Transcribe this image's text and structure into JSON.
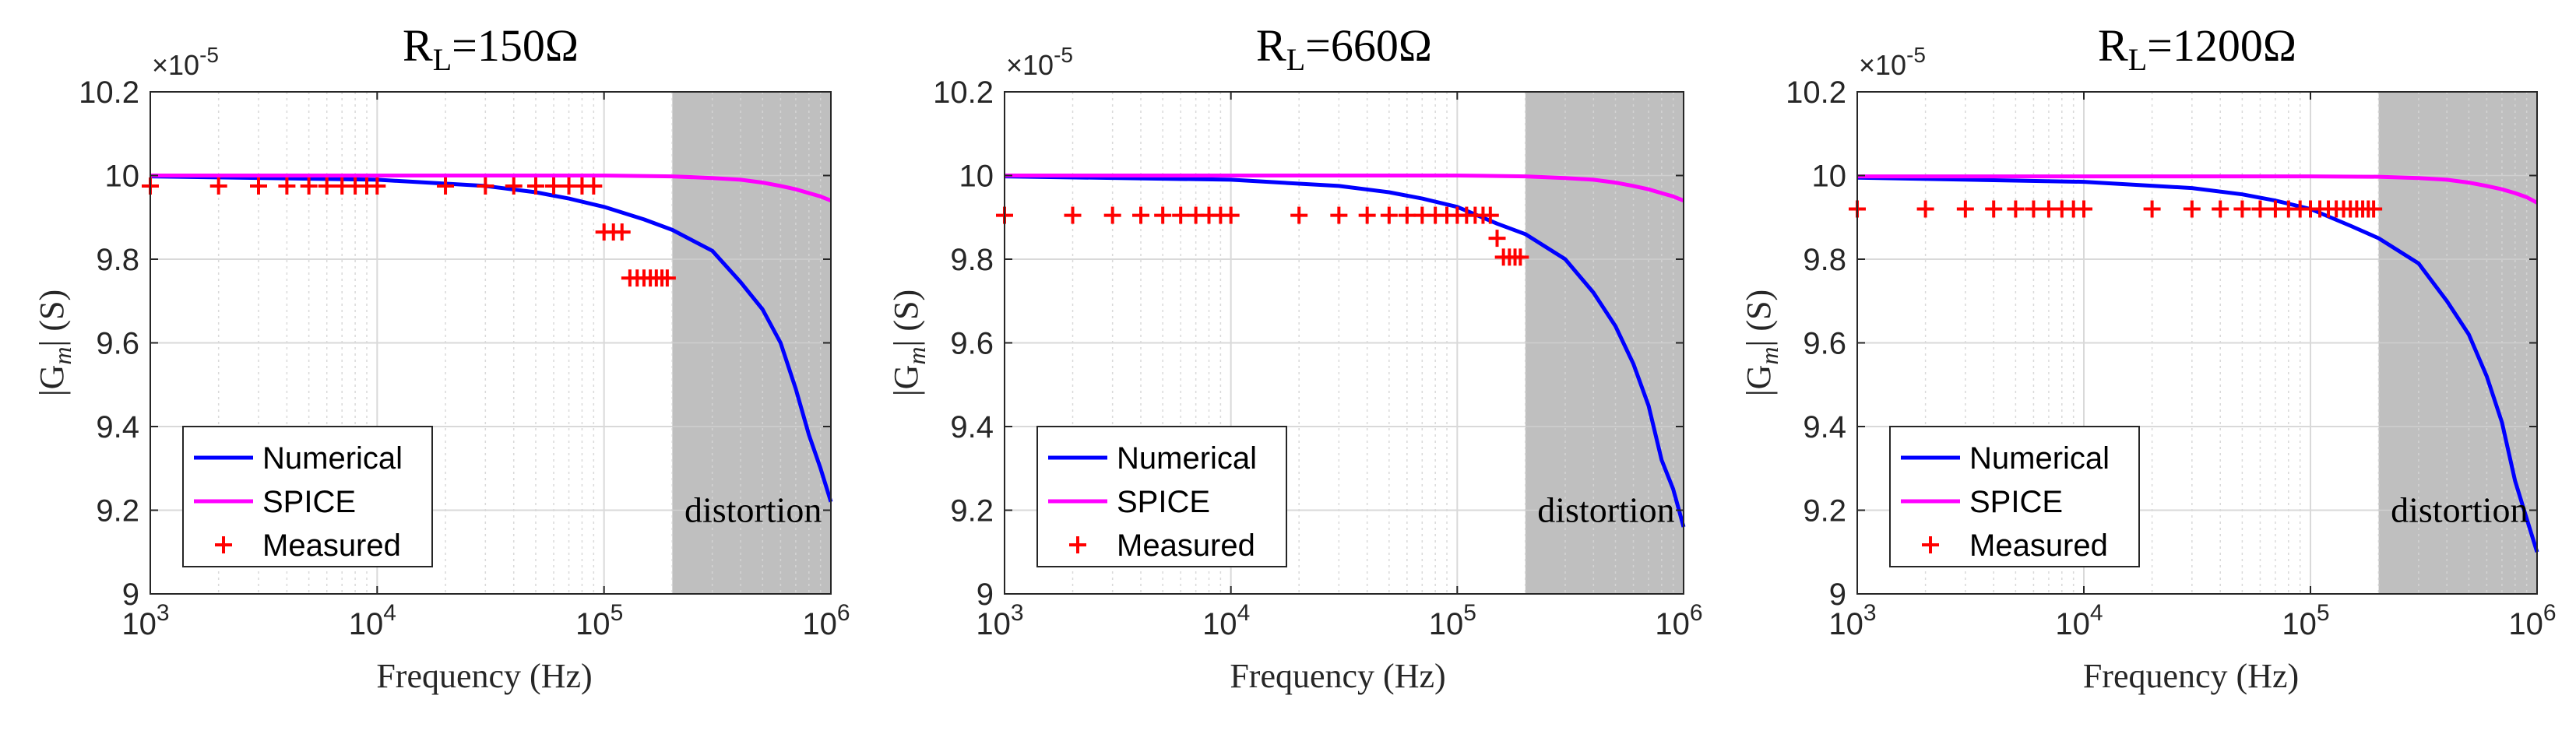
{
  "figure": {
    "colors": {
      "numerical": "#0000ff",
      "spice": "#ff00ff",
      "measured": "#ff0000",
      "distortion_fill": "#bfbfbf",
      "grid": "#d9d9d9",
      "axis": "#262626"
    }
  },
  "chart_data": [
    {
      "type": "line",
      "title": "R_L=150Ω",
      "title_main": "R",
      "title_sub": "L",
      "title_rest": "=150Ω",
      "xlabel": "Frequency (Hz)",
      "ylabel": "|G_m| (S)",
      "ylabel_main": "|G",
      "ylabel_sub": "m",
      "ylabel_rest": "| (S)",
      "xscale": "log",
      "xlim": [
        1000,
        1000000
      ],
      "ylim": [
        9.0,
        10.2
      ],
      "y_multiplier": "×10",
      "y_multiplier_exp": "-5",
      "x_ticks": [
        {
          "value": 1000,
          "base": "10",
          "exp": "3"
        },
        {
          "value": 10000,
          "base": "10",
          "exp": "4"
        },
        {
          "value": 100000,
          "base": "10",
          "exp": "5"
        },
        {
          "value": 1000000,
          "base": "10",
          "exp": "6"
        }
      ],
      "y_ticks": [
        "9",
        "9.2",
        "9.4",
        "9.6",
        "9.8",
        "10",
        "10.2"
      ],
      "grid": true,
      "shaded_region": {
        "x_range": [
          200000,
          1000000
        ],
        "label": "distortion"
      },
      "legend": {
        "position": "bottom-left",
        "entries": [
          "Numerical",
          "SPICE",
          "Measured"
        ]
      },
      "series": [
        {
          "name": "Numerical",
          "style": "line",
          "x": [
            1000,
            10000,
            30000,
            50000,
            70000,
            100000,
            150000,
            200000,
            300000,
            400000,
            500000,
            600000,
            700000,
            800000,
            900000,
            1000000
          ],
          "y": [
            9.998,
            9.99,
            9.975,
            9.96,
            9.945,
            9.925,
            9.895,
            9.87,
            9.82,
            9.745,
            9.68,
            9.6,
            9.49,
            9.38,
            9.3,
            9.22
          ]
        },
        {
          "name": "SPICE",
          "style": "line",
          "x": [
            1000,
            10000,
            100000,
            200000,
            300000,
            400000,
            500000,
            600000,
            700000,
            800000,
            900000,
            1000000
          ],
          "y": [
            10.0,
            10.0,
            10.0,
            9.998,
            9.994,
            9.99,
            9.983,
            9.975,
            9.967,
            9.958,
            9.95,
            9.94
          ]
        },
        {
          "name": "Measured",
          "style": "markers",
          "x": [
            1000,
            2000,
            3000,
            4000,
            5000,
            6000,
            7000,
            8000,
            9000,
            10000,
            20000,
            30000,
            40000,
            50000,
            60000,
            70000,
            80000,
            90000,
            100000,
            110000,
            120000,
            130000,
            140000,
            150000,
            160000,
            170000,
            180000,
            190000
          ],
          "y": [
            9.975,
            9.975,
            9.975,
            9.975,
            9.975,
            9.975,
            9.975,
            9.975,
            9.975,
            9.975,
            9.975,
            9.975,
            9.975,
            9.975,
            9.975,
            9.975,
            9.975,
            9.975,
            9.865,
            9.865,
            9.865,
            9.755,
            9.755,
            9.755,
            9.755,
            9.755,
            9.755,
            9.755
          ]
        }
      ]
    },
    {
      "type": "line",
      "title": "R_L=660Ω",
      "title_main": "R",
      "title_sub": "L",
      "title_rest": "=660Ω",
      "xlabel": "Frequency (Hz)",
      "ylabel": "|G_m| (S)",
      "ylabel_main": "|G",
      "ylabel_sub": "m",
      "ylabel_rest": "| (S)",
      "xscale": "log",
      "xlim": [
        1000,
        1000000
      ],
      "ylim": [
        9.0,
        10.2
      ],
      "y_multiplier": "×10",
      "y_multiplier_exp": "-5",
      "x_ticks": [
        {
          "value": 1000,
          "base": "10",
          "exp": "3"
        },
        {
          "value": 10000,
          "base": "10",
          "exp": "4"
        },
        {
          "value": 100000,
          "base": "10",
          "exp": "5"
        },
        {
          "value": 1000000,
          "base": "10",
          "exp": "6"
        }
      ],
      "y_ticks": [
        "9",
        "9.2",
        "9.4",
        "9.6",
        "9.8",
        "10",
        "10.2"
      ],
      "grid": true,
      "shaded_region": {
        "x_range": [
          200000,
          1000000
        ],
        "label": "distortion"
      },
      "legend": {
        "position": "bottom-left",
        "entries": [
          "Numerical",
          "SPICE",
          "Measured"
        ]
      },
      "series": [
        {
          "name": "Numerical",
          "style": "line",
          "x": [
            1000,
            10000,
            30000,
            50000,
            70000,
            100000,
            150000,
            200000,
            300000,
            400000,
            500000,
            600000,
            700000,
            800000,
            900000,
            1000000
          ],
          "y": [
            9.998,
            9.99,
            9.975,
            9.96,
            9.945,
            9.925,
            9.885,
            9.86,
            9.8,
            9.72,
            9.64,
            9.55,
            9.45,
            9.32,
            9.25,
            9.16
          ]
        },
        {
          "name": "SPICE",
          "style": "line",
          "x": [
            1000,
            10000,
            100000,
            200000,
            300000,
            400000,
            500000,
            600000,
            700000,
            800000,
            900000,
            1000000
          ],
          "y": [
            10.0,
            10.0,
            10.0,
            9.998,
            9.994,
            9.99,
            9.983,
            9.975,
            9.967,
            9.958,
            9.95,
            9.94
          ]
        },
        {
          "name": "Measured",
          "style": "markers",
          "x": [
            1000,
            2000,
            3000,
            4000,
            5000,
            6000,
            7000,
            8000,
            9000,
            10000,
            20000,
            30000,
            40000,
            50000,
            60000,
            70000,
            80000,
            90000,
            100000,
            110000,
            120000,
            130000,
            140000,
            150000,
            160000,
            170000,
            180000,
            190000
          ],
          "y": [
            9.905,
            9.905,
            9.905,
            9.905,
            9.905,
            9.905,
            9.905,
            9.905,
            9.905,
            9.905,
            9.905,
            9.905,
            9.905,
            9.905,
            9.905,
            9.905,
            9.905,
            9.905,
            9.905,
            9.905,
            9.905,
            9.905,
            9.905,
            9.85,
            9.805,
            9.805,
            9.805,
            9.805
          ]
        }
      ]
    },
    {
      "type": "line",
      "title": "R_L=1200Ω",
      "title_main": "R",
      "title_sub": "L",
      "title_rest": "=1200Ω",
      "xlabel": "Frequency (Hz)",
      "ylabel": "|G_m| (S)",
      "ylabel_main": "|G",
      "ylabel_sub": "m",
      "ylabel_rest": "| (S)",
      "xscale": "log",
      "xlim": [
        1000,
        1000000
      ],
      "ylim": [
        9.0,
        10.2
      ],
      "y_multiplier": "×10",
      "y_multiplier_exp": "-5",
      "x_ticks": [
        {
          "value": 1000,
          "base": "10",
          "exp": "3"
        },
        {
          "value": 10000,
          "base": "10",
          "exp": "4"
        },
        {
          "value": 100000,
          "base": "10",
          "exp": "5"
        },
        {
          "value": 1000000,
          "base": "10",
          "exp": "6"
        }
      ],
      "y_ticks": [
        "9",
        "9.2",
        "9.4",
        "9.6",
        "9.8",
        "10",
        "10.2"
      ],
      "grid": true,
      "shaded_region": {
        "x_range": [
          200000,
          1000000
        ],
        "label": "distortion"
      },
      "legend": {
        "position": "bottom-left",
        "entries": [
          "Numerical",
          "SPICE",
          "Measured"
        ]
      },
      "series": [
        {
          "name": "Numerical",
          "style": "line",
          "x": [
            1000,
            10000,
            30000,
            50000,
            70000,
            100000,
            150000,
            200000,
            300000,
            400000,
            500000,
            600000,
            700000,
            800000,
            900000,
            1000000
          ],
          "y": [
            9.995,
            9.985,
            9.97,
            9.955,
            9.94,
            9.92,
            9.88,
            9.85,
            9.79,
            9.7,
            9.62,
            9.52,
            9.41,
            9.27,
            9.18,
            9.1
          ]
        },
        {
          "name": "SPICE",
          "style": "line",
          "x": [
            1000,
            10000,
            100000,
            200000,
            300000,
            400000,
            500000,
            600000,
            700000,
            800000,
            900000,
            1000000
          ],
          "y": [
            9.998,
            9.998,
            9.998,
            9.997,
            9.994,
            9.99,
            9.983,
            9.975,
            9.967,
            9.958,
            9.948,
            9.935
          ]
        },
        {
          "name": "Measured",
          "style": "markers",
          "x": [
            1000,
            2000,
            3000,
            4000,
            5000,
            6000,
            7000,
            8000,
            9000,
            10000,
            20000,
            30000,
            40000,
            50000,
            60000,
            70000,
            80000,
            90000,
            100000,
            110000,
            120000,
            130000,
            140000,
            150000,
            160000,
            170000,
            180000,
            190000
          ],
          "y": [
            9.92,
            9.92,
            9.92,
            9.92,
            9.92,
            9.92,
            9.92,
            9.92,
            9.92,
            9.92,
            9.92,
            9.92,
            9.92,
            9.92,
            9.92,
            9.92,
            9.92,
            9.92,
            9.92,
            9.92,
            9.92,
            9.92,
            9.92,
            9.92,
            9.92,
            9.92,
            9.92,
            9.92
          ]
        }
      ]
    }
  ]
}
